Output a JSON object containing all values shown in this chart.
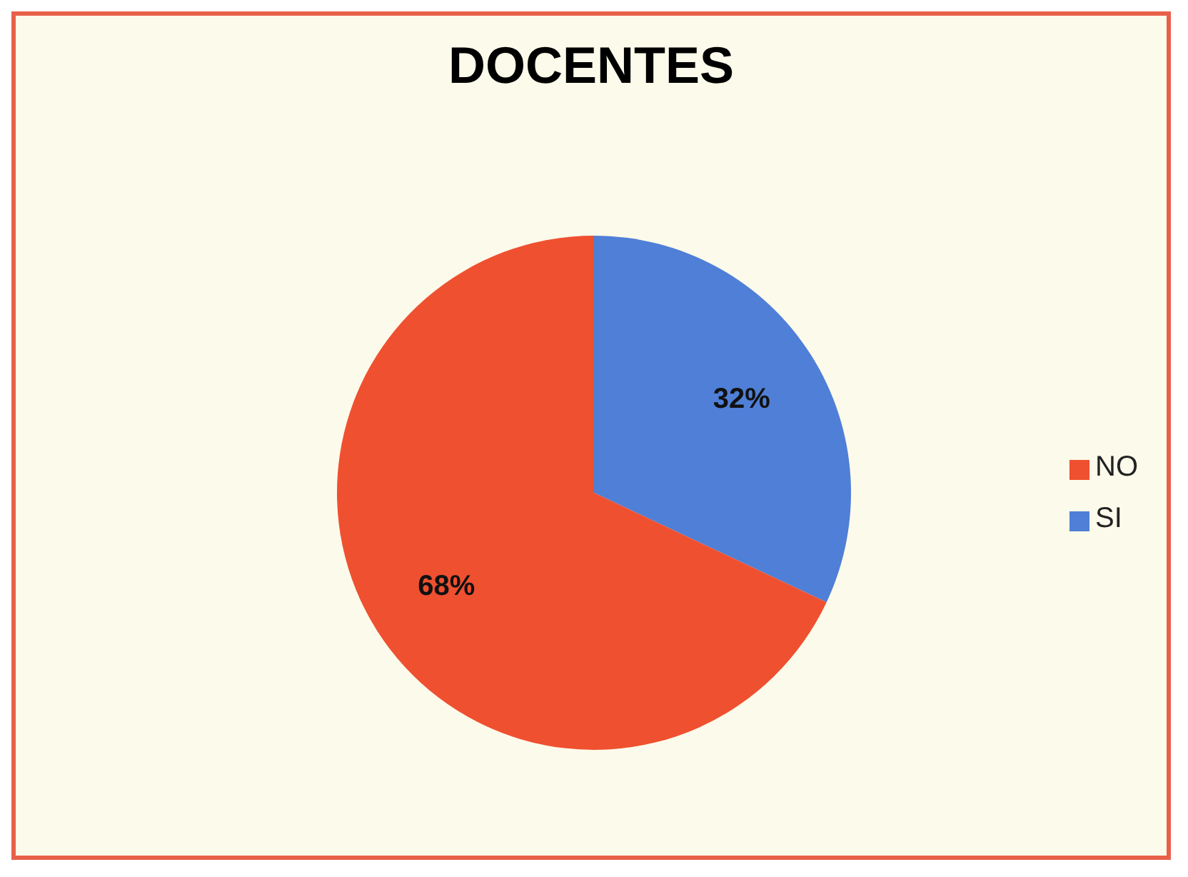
{
  "chart_data": {
    "type": "pie",
    "title": "DOCENTES",
    "categories": [
      "SI",
      "NO"
    ],
    "values": [
      32,
      68
    ],
    "colors": [
      "#4f7fd6",
      "#ef5030"
    ],
    "value_labels": [
      "32%",
      "68%"
    ],
    "legend": "right"
  }
}
